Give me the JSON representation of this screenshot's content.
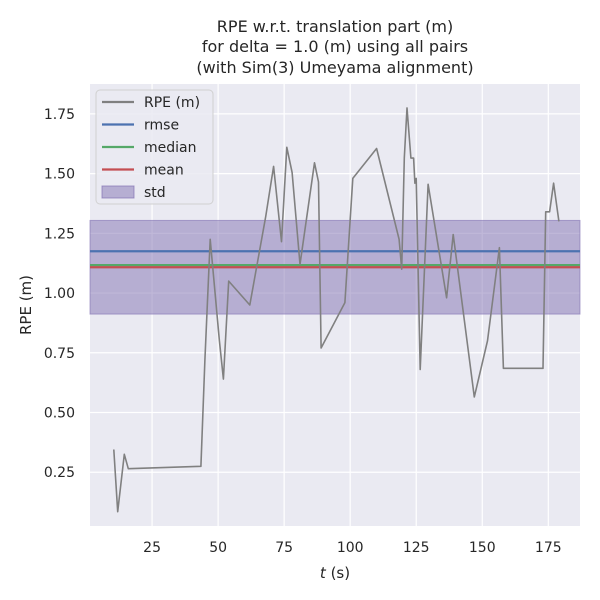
{
  "chart_data": {
    "type": "line",
    "title_lines": [
      "RPE w.r.t. translation part (m)",
      "for delta = 1.0 (m) using all pairs",
      "(with Sim(3) Umeyama alignment)"
    ],
    "xlabel_var": "t",
    "xlabel_unit": " (s)",
    "ylabel": "RPE (m)",
    "xlim": [
      1.5,
      187
    ],
    "ylim": [
      0.025,
      1.875
    ],
    "xticks": [
      25,
      50,
      75,
      100,
      125,
      150,
      175
    ],
    "yticks": [
      0.25,
      0.5,
      0.75,
      1.0,
      1.25,
      1.5,
      1.75
    ],
    "ytick_labels": [
      "0.25",
      "0.50",
      "0.75",
      "1.00",
      "1.25",
      "1.50",
      "1.75"
    ],
    "grid": true,
    "legend_position": "top-left",
    "series": [
      {
        "name": "RPE (m)",
        "color": "#808080",
        "x": [
          10.5,
          12,
          14.5,
          16,
          43.5,
          45,
          47,
          50.5,
          52,
          54,
          62,
          68,
          71,
          74,
          76,
          78,
          81,
          86.5,
          88,
          89,
          98,
          101,
          110,
          118.5,
          119.5,
          120.5,
          121.5,
          123,
          124,
          124.5,
          125,
          126.5,
          129.5,
          136.5,
          139,
          147,
          152,
          156.5,
          158,
          173,
          174,
          175.5,
          177,
          179
        ],
        "y": [
          0.345,
          0.085,
          0.325,
          0.265,
          0.275,
          0.72,
          1.225,
          0.8,
          0.64,
          1.05,
          0.95,
          1.32,
          1.53,
          1.215,
          1.61,
          1.505,
          1.12,
          1.545,
          1.465,
          0.77,
          0.96,
          1.48,
          1.605,
          1.225,
          1.1,
          1.565,
          1.775,
          1.565,
          1.565,
          1.46,
          1.48,
          0.68,
          1.455,
          0.98,
          1.245,
          0.565,
          0.8,
          1.19,
          0.685,
          0.685,
          1.34,
          1.34,
          1.46,
          1.3
        ]
      }
    ],
    "stats": [
      {
        "name": "rmse",
        "value": 1.175,
        "color": "#4c72b0"
      },
      {
        "name": "median",
        "value": 1.117,
        "color": "#55a868"
      },
      {
        "name": "mean",
        "value": 1.108,
        "color": "#c44e52"
      }
    ],
    "std_band": {
      "name": "std",
      "lower": 0.912,
      "upper": 1.304,
      "color": "#8172b2"
    }
  }
}
